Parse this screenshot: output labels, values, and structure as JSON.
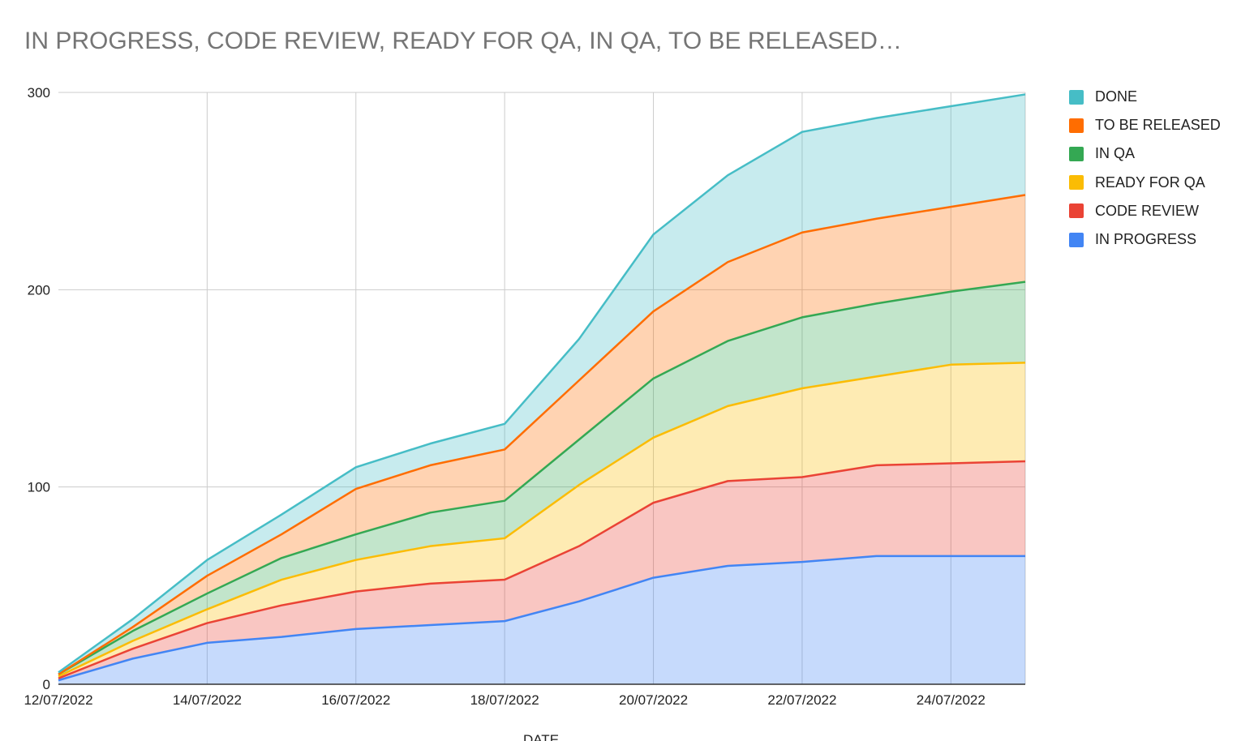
{
  "chart_data": {
    "type": "area",
    "stacked": true,
    "title": "IN PROGRESS, CODE REVIEW, READY FOR QA, IN QA, TO BE RELEASED…",
    "xlabel": "DATE",
    "ylabel": "",
    "ylim": [
      0,
      300
    ],
    "y_ticks": [
      "0",
      "100",
      "200",
      "300"
    ],
    "x_tick_labels": [
      "12/07/2022",
      "14/07/2022",
      "16/07/2022",
      "18/07/2022",
      "20/07/2022",
      "22/07/2022",
      "24/07/2022"
    ],
    "x": [
      "12/07/2022",
      "13/07/2022",
      "14/07/2022",
      "15/07/2022",
      "16/07/2022",
      "17/07/2022",
      "18/07/2022",
      "19/07/2022",
      "20/07/2022",
      "21/07/2022",
      "22/07/2022",
      "23/07/2022",
      "24/07/2022",
      "25/07/2022"
    ],
    "grid": true,
    "legend_position": "right",
    "series": [
      {
        "name": "IN PROGRESS",
        "color": "#4285f4",
        "values": [
          2,
          13,
          21,
          24,
          28,
          30,
          32,
          42,
          54,
          60,
          62,
          65,
          65,
          65
        ]
      },
      {
        "name": "CODE REVIEW",
        "color": "#ea4335",
        "values": [
          1,
          5,
          10,
          16,
          19,
          21,
          21,
          28,
          38,
          43,
          43,
          46,
          47,
          48
        ]
      },
      {
        "name": "READY FOR QA",
        "color": "#fbbc04",
        "values": [
          1,
          4,
          7,
          13,
          16,
          19,
          21,
          31,
          33,
          38,
          45,
          45,
          50,
          50
        ]
      },
      {
        "name": "IN QA",
        "color": "#34a853",
        "values": [
          1,
          5,
          8,
          11,
          13,
          17,
          19,
          23,
          30,
          33,
          36,
          37,
          37,
          41
        ]
      },
      {
        "name": "TO BE RELEASED",
        "color": "#ff6d01",
        "values": [
          0,
          2,
          9,
          12,
          23,
          24,
          26,
          30,
          34,
          40,
          43,
          43,
          43,
          44
        ]
      },
      {
        "name": "DONE",
        "color": "#46bdc6",
        "values": [
          1,
          4,
          8,
          10,
          11,
          11,
          13,
          21,
          39,
          44,
          51,
          51,
          51,
          51
        ]
      }
    ],
    "legend_order": [
      "DONE",
      "TO BE RELEASED",
      "IN QA",
      "READY FOR QA",
      "CODE REVIEW",
      "IN PROGRESS"
    ]
  }
}
